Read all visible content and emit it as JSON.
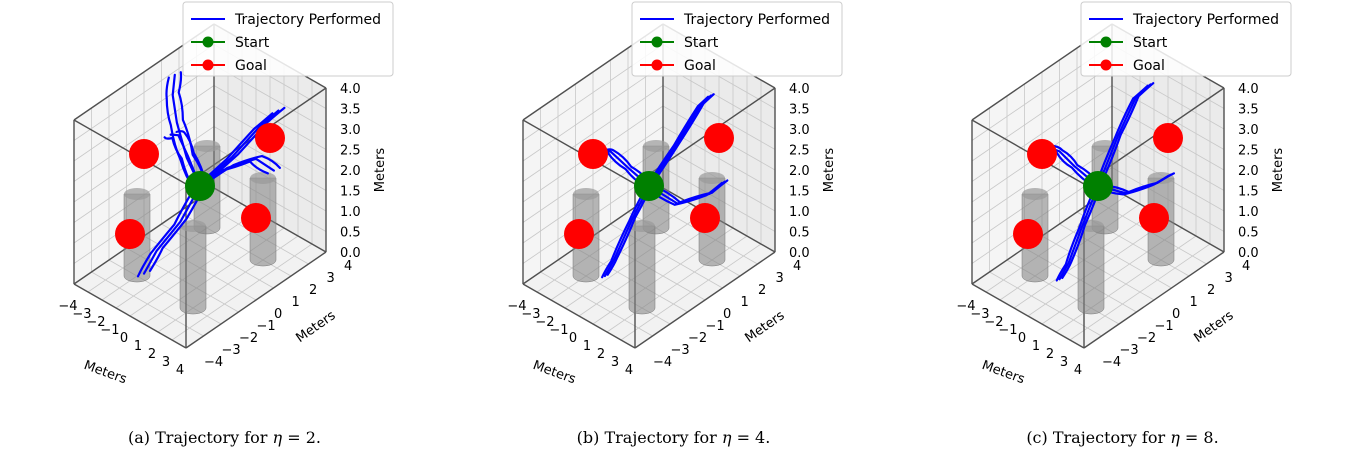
{
  "figure": {
    "panels": [
      {
        "caption_prefix": "(a) Trajectory for",
        "eta_symbol": "η",
        "eta_value": "= 2."
      },
      {
        "caption_prefix": "(b) Trajectory for",
        "eta_symbol": "η",
        "eta_value": "= 4."
      },
      {
        "caption_prefix": "(c) Trajectory for",
        "eta_symbol": "η",
        "eta_value": "= 8."
      }
    ]
  },
  "colors": {
    "trajectory": "#0000ff",
    "start": "#008000",
    "goal": "#ff0000",
    "obstacle": "#808080"
  },
  "chart_data": [
    {
      "type": "line",
      "subtype": "3d-trajectory",
      "eta": 2,
      "xlabel": "Meters",
      "ylabel": "Meters",
      "zlabel": "Meters",
      "xlim": [
        -4,
        4
      ],
      "ylim": [
        -4,
        4
      ],
      "zlim": [
        0,
        4
      ],
      "xticks": [
        "−4",
        "−3",
        "−2",
        "−1",
        "0",
        "1",
        "2",
        "3",
        "4"
      ],
      "yticks": [
        "−4",
        "−3",
        "−2",
        "−1",
        "0",
        "1",
        "2",
        "3",
        "4"
      ],
      "zticks": [
        "0.0",
        "0.5",
        "1.0",
        "1.5",
        "2.0",
        "2.5",
        "3.0",
        "3.5",
        "4.0"
      ],
      "legend": {
        "position": "top",
        "entries": [
          "Trajectory Performed",
          "Start",
          "Goal"
        ]
      },
      "start": [
        0,
        0,
        2
      ],
      "goals": [
        [
          -4,
          0,
          2
        ],
        [
          4,
          0,
          2
        ],
        [
          0,
          -4,
          2
        ],
        [
          0,
          4,
          2
        ]
      ],
      "obstacles": [
        {
          "center": [
            -2,
            -2
          ],
          "height": 2
        },
        {
          "center": [
            2,
            2
          ],
          "height": 2
        },
        {
          "center": [
            -2,
            2
          ],
          "height": 2
        },
        {
          "center": [
            2,
            -2
          ],
          "height": 2
        }
      ],
      "series": [
        {
          "name": "Trajectory Performed",
          "style": "bundle",
          "paths": [
            [
              [
                0,
                0,
                2
              ],
              [
                -1.2,
                0.2,
                2.4
              ],
              [
                -2.4,
                0.6,
                2.9
              ],
              [
                -3.2,
                1.0,
                3.3
              ],
              [
                -3.8,
                1.6,
                3.5
              ]
            ],
            [
              [
                0,
                0,
                2
              ],
              [
                -1.5,
                0.5,
                2.3
              ],
              [
                -2.8,
                1.0,
                2.4
              ],
              [
                -3.6,
                1.2,
                2.2
              ]
            ],
            [
              [
                0,
                0,
                2
              ],
              [
                1.2,
                0.6,
                2.5
              ],
              [
                2.5,
                1.2,
                2.8
              ],
              [
                3.4,
                1.5,
                2.6
              ]
            ],
            [
              [
                0,
                0,
                2
              ],
              [
                0.3,
                1.6,
                2.3
              ],
              [
                0.8,
                2.8,
                2.8
              ],
              [
                1.1,
                3.6,
                3.0
              ]
            ],
            [
              [
                0,
                0,
                2
              ],
              [
                0.1,
                -1.2,
                1.5
              ],
              [
                -0.1,
                -2.4,
                1.1
              ],
              [
                0.0,
                -3.2,
                0.8
              ]
            ]
          ]
        }
      ]
    },
    {
      "type": "line",
      "subtype": "3d-trajectory",
      "eta": 4,
      "xlabel": "Meters",
      "ylabel": "Meters",
      "zlabel": "Meters",
      "xlim": [
        -4,
        4
      ],
      "ylim": [
        -4,
        4
      ],
      "zlim": [
        0,
        4
      ],
      "xticks": [
        "−4",
        "−3",
        "−2",
        "−1",
        "0",
        "1",
        "2",
        "3",
        "4"
      ],
      "yticks": [
        "−4",
        "−3",
        "−2",
        "−1",
        "0",
        "1",
        "2",
        "3",
        "4"
      ],
      "zticks": [
        "0.0",
        "0.5",
        "1.0",
        "1.5",
        "2.0",
        "2.5",
        "3.0",
        "3.5",
        "4.0"
      ],
      "legend": {
        "position": "top",
        "entries": [
          "Trajectory Performed",
          "Start",
          "Goal"
        ]
      },
      "start": [
        0,
        0,
        2
      ],
      "goals": [
        [
          -4,
          0,
          2
        ],
        [
          4,
          0,
          2
        ],
        [
          0,
          -4,
          2
        ],
        [
          0,
          4,
          2
        ]
      ],
      "obstacles": [
        {
          "center": [
            -2,
            -2
          ],
          "height": 2
        },
        {
          "center": [
            2,
            2
          ],
          "height": 2
        },
        {
          "center": [
            -2,
            2
          ],
          "height": 2
        },
        {
          "center": [
            2,
            -2
          ],
          "height": 2
        }
      ],
      "series": [
        {
          "name": "Trajectory Performed",
          "style": "bundle",
          "paths": [
            [
              [
                0,
                0,
                2
              ],
              [
                -1.6,
                0.1,
                2.1
              ],
              [
                -3.0,
                0.2,
                2.2
              ],
              [
                -3.6,
                0.1,
                2.1
              ]
            ],
            [
              [
                0,
                0,
                2
              ],
              [
                1.4,
                0.5,
                1.7
              ],
              [
                2.8,
                1.2,
                2.0
              ],
              [
                3.4,
                1.6,
                2.3
              ]
            ],
            [
              [
                0,
                0,
                2
              ],
              [
                0.1,
                1.5,
                2.6
              ],
              [
                0.2,
                2.8,
                3.2
              ],
              [
                0.3,
                3.3,
                3.3
              ]
            ],
            [
              [
                0,
                0,
                2
              ],
              [
                0.3,
                -1.2,
                1.6
              ],
              [
                0.5,
                -2.4,
                1.0
              ],
              [
                0.6,
                -3.0,
                0.8
              ]
            ]
          ]
        }
      ]
    },
    {
      "type": "line",
      "subtype": "3d-trajectory",
      "eta": 8,
      "xlabel": "Meters",
      "ylabel": "Meters",
      "zlabel": "Meters",
      "xlim": [
        -4,
        4
      ],
      "ylim": [
        -4,
        4
      ],
      "zlim": [
        0,
        4
      ],
      "xticks": [
        "−4",
        "−3",
        "−2",
        "−1",
        "0",
        "1",
        "2",
        "3",
        "4"
      ],
      "yticks": [
        "−4",
        "−3",
        "−2",
        "−1",
        "0",
        "1",
        "2",
        "3",
        "4"
      ],
      "zticks": [
        "0.0",
        "0.5",
        "1.0",
        "1.5",
        "2.0",
        "2.5",
        "3.0",
        "3.5",
        "4.0"
      ],
      "legend": {
        "position": "top",
        "entries": [
          "Trajectory Performed",
          "Start",
          "Goal"
        ]
      },
      "start": [
        0,
        0,
        2
      ],
      "goals": [
        [
          -4,
          0,
          2
        ],
        [
          4,
          0,
          2
        ],
        [
          0,
          -4,
          2
        ],
        [
          0,
          4,
          2
        ]
      ],
      "obstacles": [
        {
          "center": [
            -2,
            -2
          ],
          "height": 2
        },
        {
          "center": [
            2,
            2
          ],
          "height": 2
        },
        {
          "center": [
            -2,
            2
          ],
          "height": 2
        },
        {
          "center": [
            2,
            -2
          ],
          "height": 2
        }
      ],
      "series": [
        {
          "name": "Trajectory Performed",
          "style": "bundle",
          "paths": [
            [
              [
                0,
                0,
                2
              ],
              [
                -1.8,
                0.1,
                2.1
              ],
              [
                -3.0,
                0.2,
                2.2
              ],
              [
                -3.7,
                0.1,
                2.2
              ]
            ],
            [
              [
                0,
                0,
                2
              ],
              [
                1.5,
                0.4,
                2.0
              ],
              [
                2.8,
                1.0,
                2.3
              ],
              [
                3.6,
                1.3,
                2.6
              ]
            ],
            [
              [
                0,
                0,
                2
              ],
              [
                -0.2,
                1.3,
                2.8
              ],
              [
                -0.3,
                2.4,
                3.4
              ],
              [
                0.0,
                3.0,
                3.6
              ]
            ],
            [
              [
                0,
                0,
                2
              ],
              [
                0.5,
                -1.3,
                1.5
              ],
              [
                0.9,
                -2.4,
                1.0
              ],
              [
                1.0,
                -3.0,
                0.8
              ]
            ]
          ]
        }
      ]
    }
  ]
}
